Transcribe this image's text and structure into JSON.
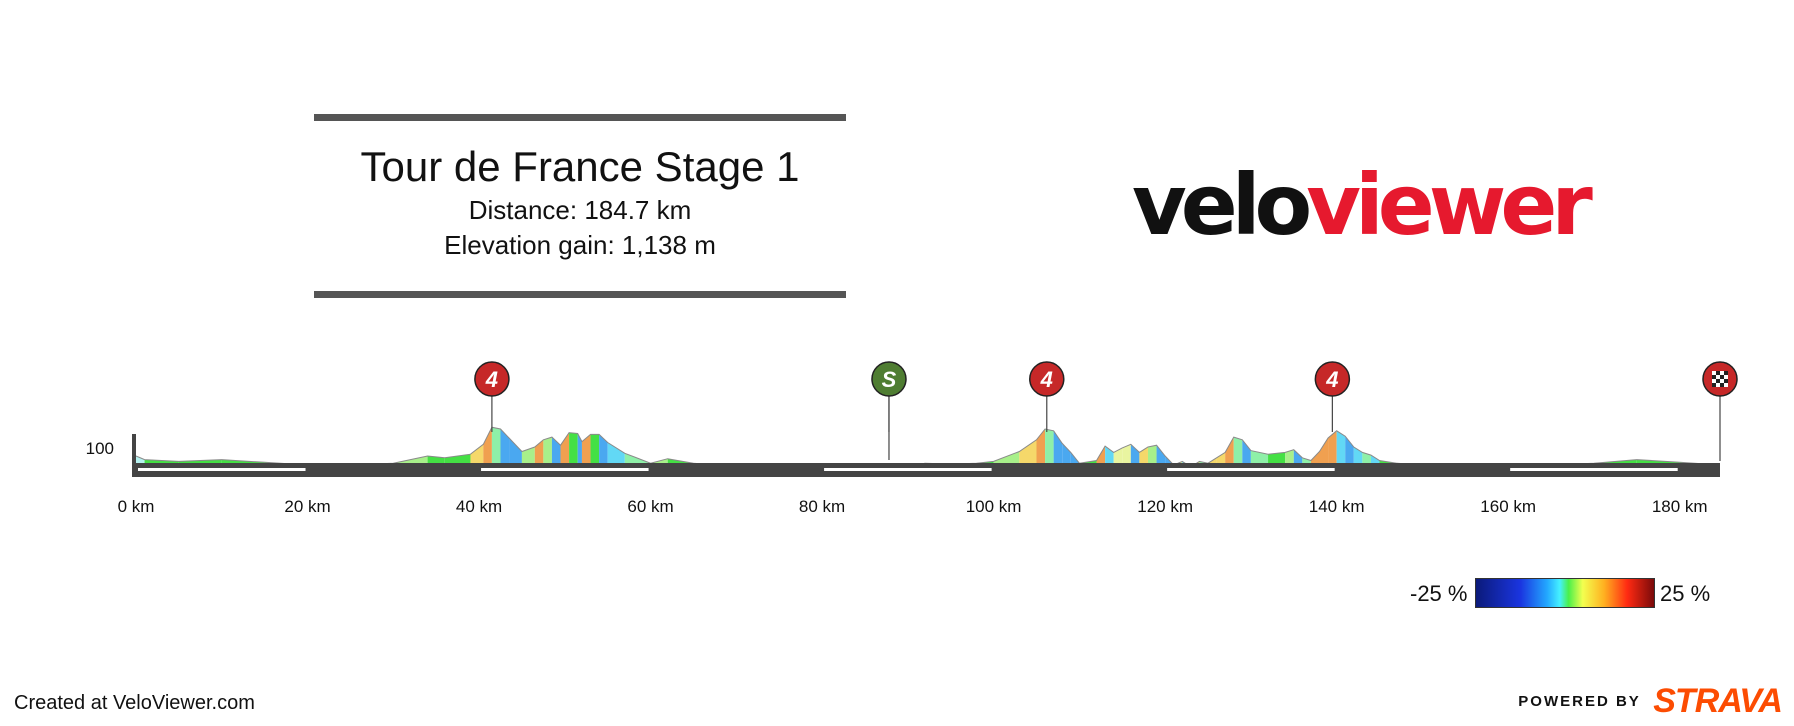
{
  "header": {
    "title": "Tour de France Stage 1",
    "distance": "Distance: 184.7 km",
    "elevation_gain": "Elevation gain: 1,138 m"
  },
  "logo": {
    "part1": "velo",
    "part2": "viewer"
  },
  "chart_data": {
    "type": "area",
    "xlabel": "",
    "ylabel": "",
    "x_unit": "km",
    "xlim": [
      0,
      184.7
    ],
    "x_ticks": [
      "0 km",
      "20 km",
      "40 km",
      "60 km",
      "80 km",
      "100 km",
      "120 km",
      "140 km",
      "160 km",
      "180 km"
    ],
    "x_tick_values": [
      0,
      20,
      40,
      60,
      80,
      100,
      120,
      140,
      160,
      180
    ],
    "y_ticks": [
      "100"
    ],
    "y_tick_values": [
      100
    ],
    "profile": [
      [
        0,
        90
      ],
      [
        1,
        86
      ],
      [
        5,
        84
      ],
      [
        10,
        86
      ],
      [
        15,
        83
      ],
      [
        20,
        80
      ],
      [
        25,
        80
      ],
      [
        30,
        82
      ],
      [
        34,
        90
      ],
      [
        36,
        88
      ],
      [
        39,
        92
      ],
      [
        40.5,
        103
      ],
      [
        41.5,
        122
      ],
      [
        42.5,
        120
      ],
      [
        43.5,
        110
      ],
      [
        45,
        95
      ],
      [
        46.5,
        100
      ],
      [
        47.5,
        108
      ],
      [
        48.5,
        111
      ],
      [
        49.5,
        102
      ],
      [
        50.5,
        116
      ],
      [
        51.5,
        115
      ],
      [
        52,
        106
      ],
      [
        53,
        114
      ],
      [
        54,
        114
      ],
      [
        55,
        105
      ],
      [
        57,
        93
      ],
      [
        60,
        82
      ],
      [
        62,
        87
      ],
      [
        65,
        82
      ],
      [
        70,
        78
      ],
      [
        75,
        78
      ],
      [
        80,
        78
      ],
      [
        85,
        78
      ],
      [
        90,
        78
      ],
      [
        92,
        82
      ],
      [
        95,
        81
      ],
      [
        98,
        82
      ],
      [
        100,
        84
      ],
      [
        103,
        95
      ],
      [
        105,
        108
      ],
      [
        106,
        120
      ],
      [
        107,
        118
      ],
      [
        108,
        104
      ],
      [
        109,
        94
      ],
      [
        110,
        82
      ],
      [
        112,
        85
      ],
      [
        113,
        101
      ],
      [
        114,
        94
      ],
      [
        115,
        99
      ],
      [
        116,
        103
      ],
      [
        117,
        94
      ],
      [
        118,
        100
      ],
      [
        119,
        102
      ],
      [
        120,
        90
      ],
      [
        121,
        80
      ],
      [
        122,
        84
      ],
      [
        123,
        78
      ],
      [
        124,
        84
      ],
      [
        125,
        82
      ],
      [
        126,
        88
      ],
      [
        127,
        94
      ],
      [
        128,
        111
      ],
      [
        129,
        108
      ],
      [
        130,
        96
      ],
      [
        132,
        92
      ],
      [
        134,
        94
      ],
      [
        135,
        97
      ],
      [
        136,
        88
      ],
      [
        137,
        85
      ],
      [
        138,
        95
      ],
      [
        139,
        110
      ],
      [
        140,
        118
      ],
      [
        141,
        112
      ],
      [
        142,
        100
      ],
      [
        143,
        94
      ],
      [
        144,
        91
      ],
      [
        145,
        85
      ],
      [
        147,
        82
      ],
      [
        150,
        80
      ],
      [
        160,
        78
      ],
      [
        170,
        82
      ],
      [
        175,
        86
      ],
      [
        180,
        83
      ],
      [
        184.7,
        80
      ]
    ],
    "markers": [
      {
        "type": "climb",
        "label": "4",
        "km": 41.5,
        "color": "#c62828"
      },
      {
        "type": "sprint",
        "label": "S",
        "km": 87.8,
        "color": "#4f7d32"
      },
      {
        "type": "climb",
        "label": "4",
        "km": 106.2,
        "color": "#c62828"
      },
      {
        "type": "climb",
        "label": "4",
        "km": 139.5,
        "color": "#c62828"
      },
      {
        "type": "finish",
        "label": "",
        "km": 184.7,
        "color": "#c62828"
      }
    ],
    "gradient_legend": {
      "min_label": "-25 %",
      "max_label": "25 %",
      "min": -25,
      "max": 25
    }
  },
  "footer": {
    "created": "Created at VeloViewer.com",
    "powered_by": "POWERED BY",
    "brand": "STRAVA"
  },
  "colors": {
    "flat": "#44e044",
    "road": "#444444",
    "climb_marker": "#c62828",
    "sprint_marker": "#4f7d32",
    "strava": "#fc4c02",
    "logo_red": "#e6192e"
  }
}
